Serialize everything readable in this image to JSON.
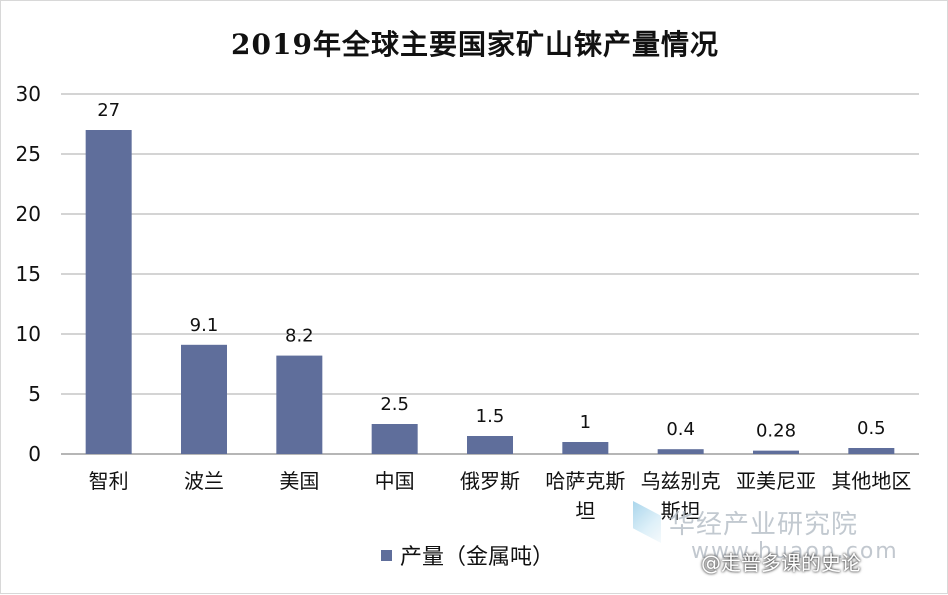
{
  "chart_data": {
    "type": "bar",
    "title": "2019年全球主要国家矿山铼产量情况",
    "categories": [
      "智利",
      "波兰",
      "美国",
      "中国",
      "俄罗斯",
      "哈萨克斯坦",
      "乌兹别克斯坦",
      "亚美尼亚",
      "其他地区"
    ],
    "category_lines": [
      [
        "智利"
      ],
      [
        "波兰"
      ],
      [
        "美国"
      ],
      [
        "中国"
      ],
      [
        "俄罗斯"
      ],
      [
        "哈萨克斯",
        "坦"
      ],
      [
        "乌兹别克",
        "斯坦"
      ],
      [
        "亚美尼亚"
      ],
      [
        "其他地区"
      ]
    ],
    "series": [
      {
        "name": "产量（金属吨）",
        "values": [
          27,
          9.1,
          8.2,
          2.5,
          1.5,
          1,
          0.4,
          0.28,
          0.5
        ],
        "labels": [
          "27",
          "9.1",
          "8.2",
          "2.5",
          "1.5",
          "1",
          "0.4",
          "0.28",
          "0.5"
        ]
      }
    ],
    "ylim": [
      0,
      30
    ],
    "yticks": [
      0,
      5,
      10,
      15,
      20,
      25,
      30
    ],
    "grid": true,
    "legend_position": "bottom",
    "bar_color": "#5f6e9b",
    "grid_color": "#a9a9a9"
  },
  "watermark": {
    "org": "华经产业研究院",
    "url": "www.huaon.com",
    "source": "@走普多课的史论"
  }
}
